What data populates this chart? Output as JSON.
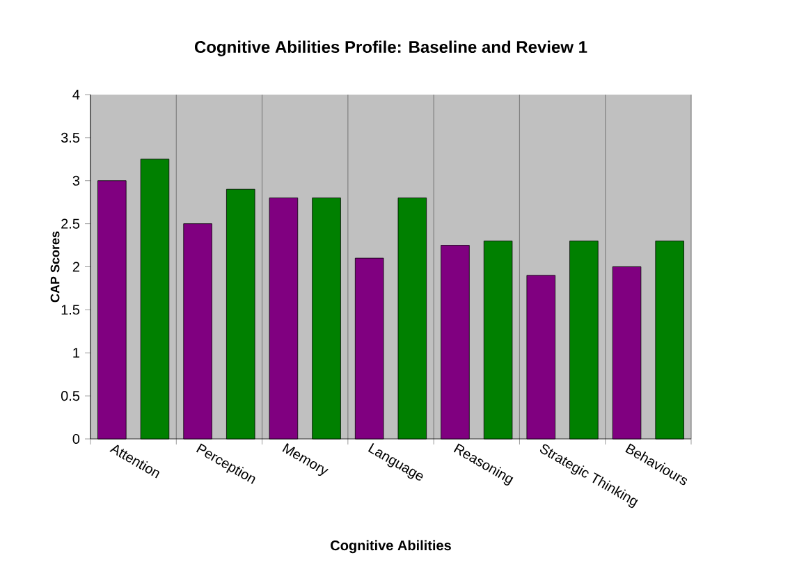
{
  "chart_data": {
    "type": "bar",
    "title": "Cognitive Abilities Profile: Baseline and Review 1",
    "xlabel": "Cognitive Abilities",
    "ylabel": "CAP Scores",
    "categories": [
      "Attention",
      "Perception",
      "Memory",
      "Language",
      "Reasoning",
      "Strategic Thinking",
      "Behaviours"
    ],
    "series": [
      {
        "color": "#800080",
        "values": [
          3.0,
          2.5,
          2.8,
          2.1,
          2.25,
          1.9,
          2.0
        ]
      },
      {
        "color": "#008000",
        "values": [
          3.25,
          2.9,
          2.8,
          2.8,
          2.3,
          2.3,
          2.3
        ]
      }
    ],
    "ylim": [
      0,
      4
    ],
    "yticks": [
      0,
      0.5,
      1,
      1.5,
      2,
      2.5,
      3,
      3.5,
      4
    ],
    "grid": "x"
  }
}
